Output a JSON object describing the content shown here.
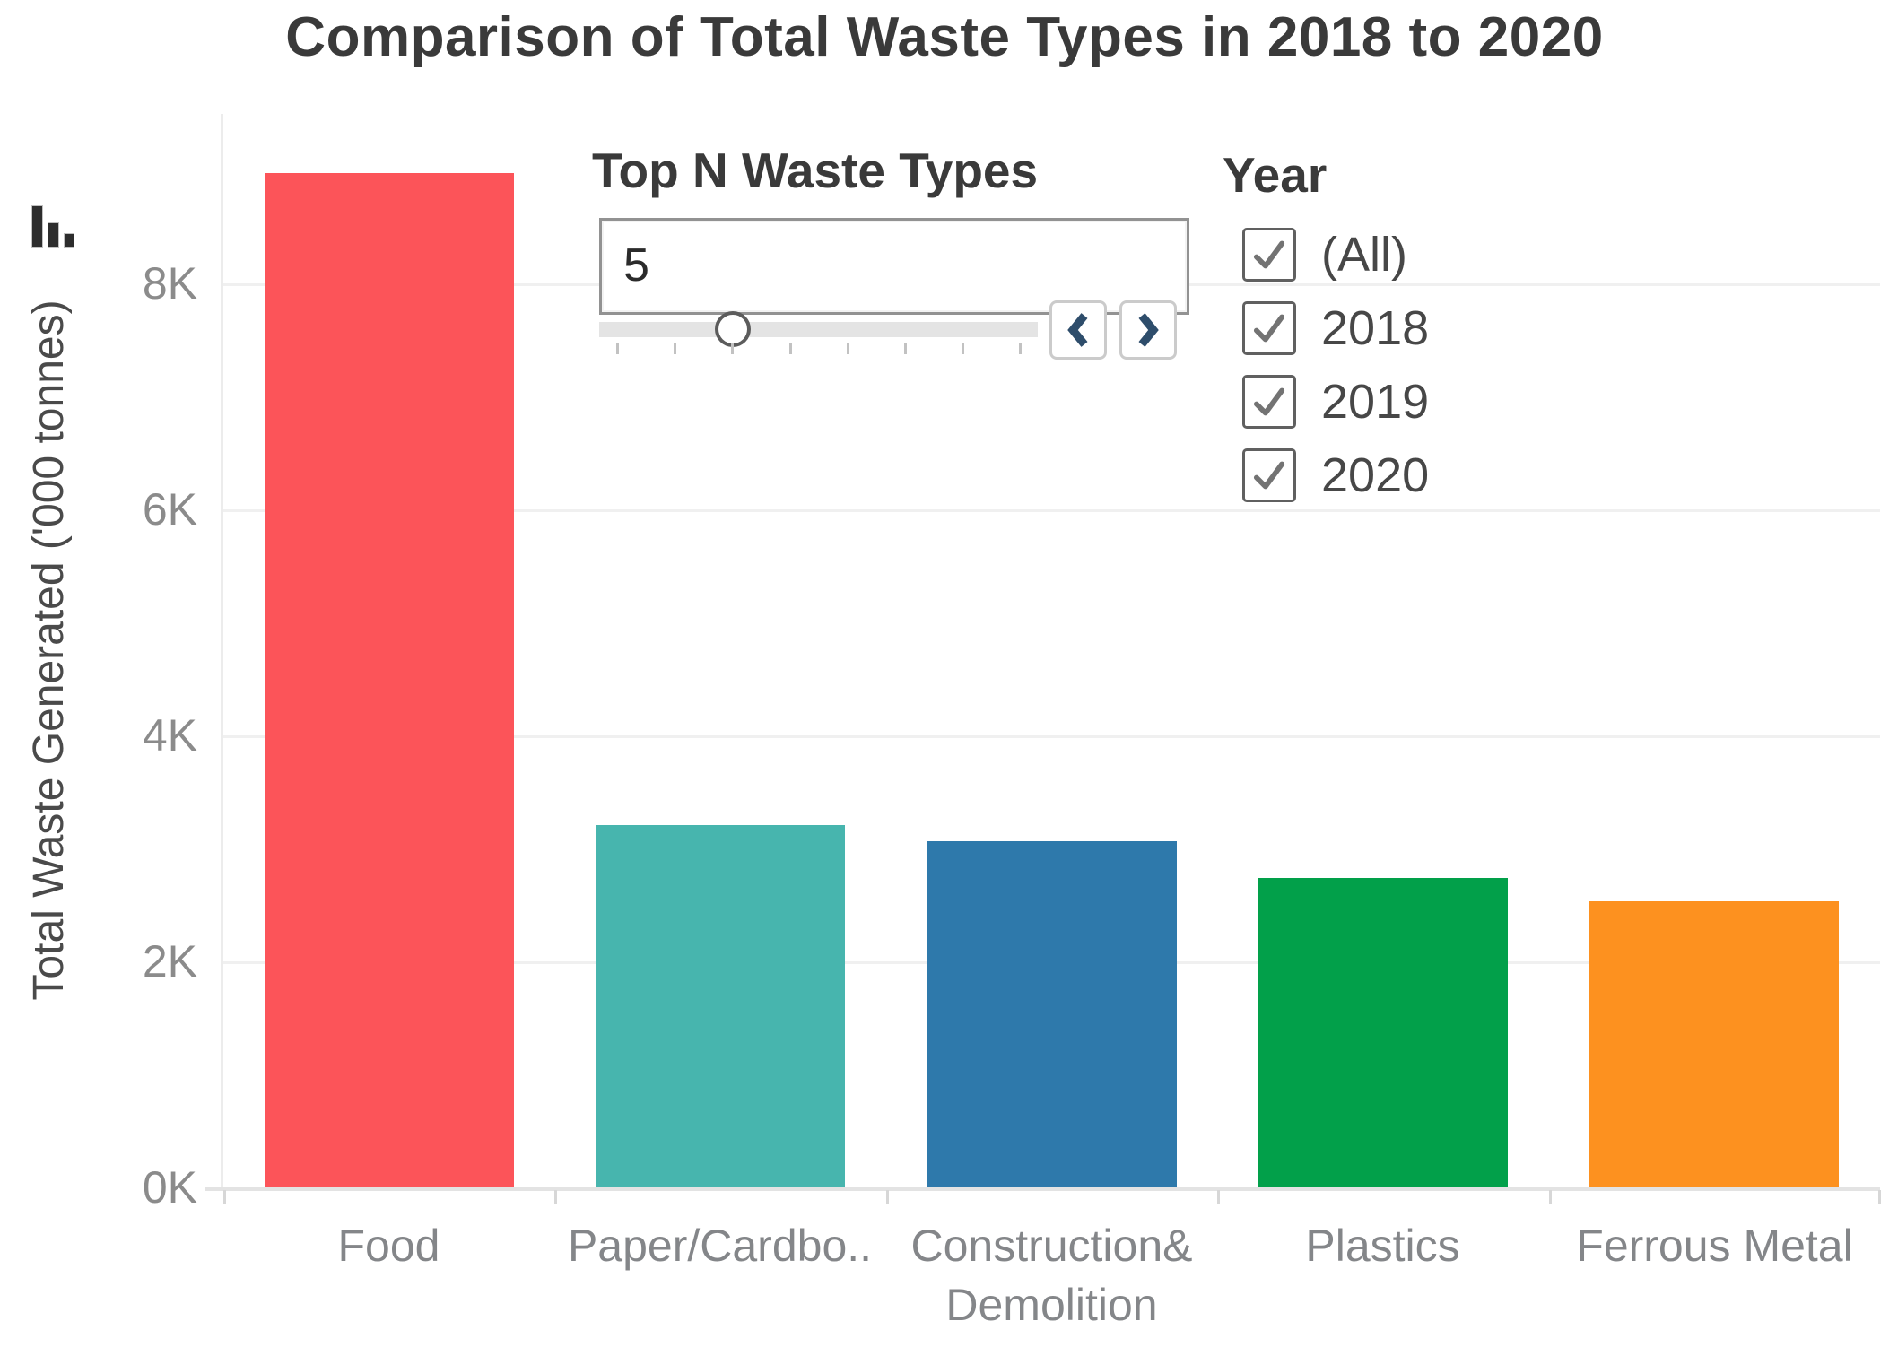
{
  "title": "Comparison of Total Waste Types in 2018 to 2020",
  "chart_data": {
    "type": "bar",
    "title": "Comparison of Total Waste Types in 2018 to 2020",
    "categories": [
      "Food",
      "Paper/Cardbo..",
      "Construction& Demolition",
      "Plastics",
      "Ferrous Metal"
    ],
    "values": [
      8980,
      3210,
      3060,
      2740,
      2530
    ],
    "bar_colors": [
      "#FC5459",
      "#47B5AE",
      "#2E79AB",
      "#02A04A",
      "#FD911F"
    ],
    "xlabel": "",
    "ylabel": "Total Waste Generated ('000 tonnes)",
    "ylim": [
      0,
      9500
    ],
    "yticks": [
      {
        "value": 0,
        "label": "0K"
      },
      {
        "value": 2000,
        "label": "2K"
      },
      {
        "value": 4000,
        "label": "4K"
      },
      {
        "value": 6000,
        "label": "6K"
      },
      {
        "value": 8000,
        "label": "8K"
      }
    ],
    "grid": "horizontal",
    "legend": "none"
  },
  "filters": {
    "top_n": {
      "label": "Top N Waste Types",
      "value": "5",
      "prev_icon": "chevron-left-icon",
      "next_icon": "chevron-right-icon"
    },
    "year": {
      "label": "Year",
      "options": [
        {
          "label": "(All)",
          "checked": true
        },
        {
          "label": "2018",
          "checked": true
        },
        {
          "label": "2019",
          "checked": true
        },
        {
          "label": "2020",
          "checked": true
        }
      ]
    }
  },
  "icons": {
    "toolbar": "bar-chart-icon",
    "checkbox": "check-icon"
  }
}
